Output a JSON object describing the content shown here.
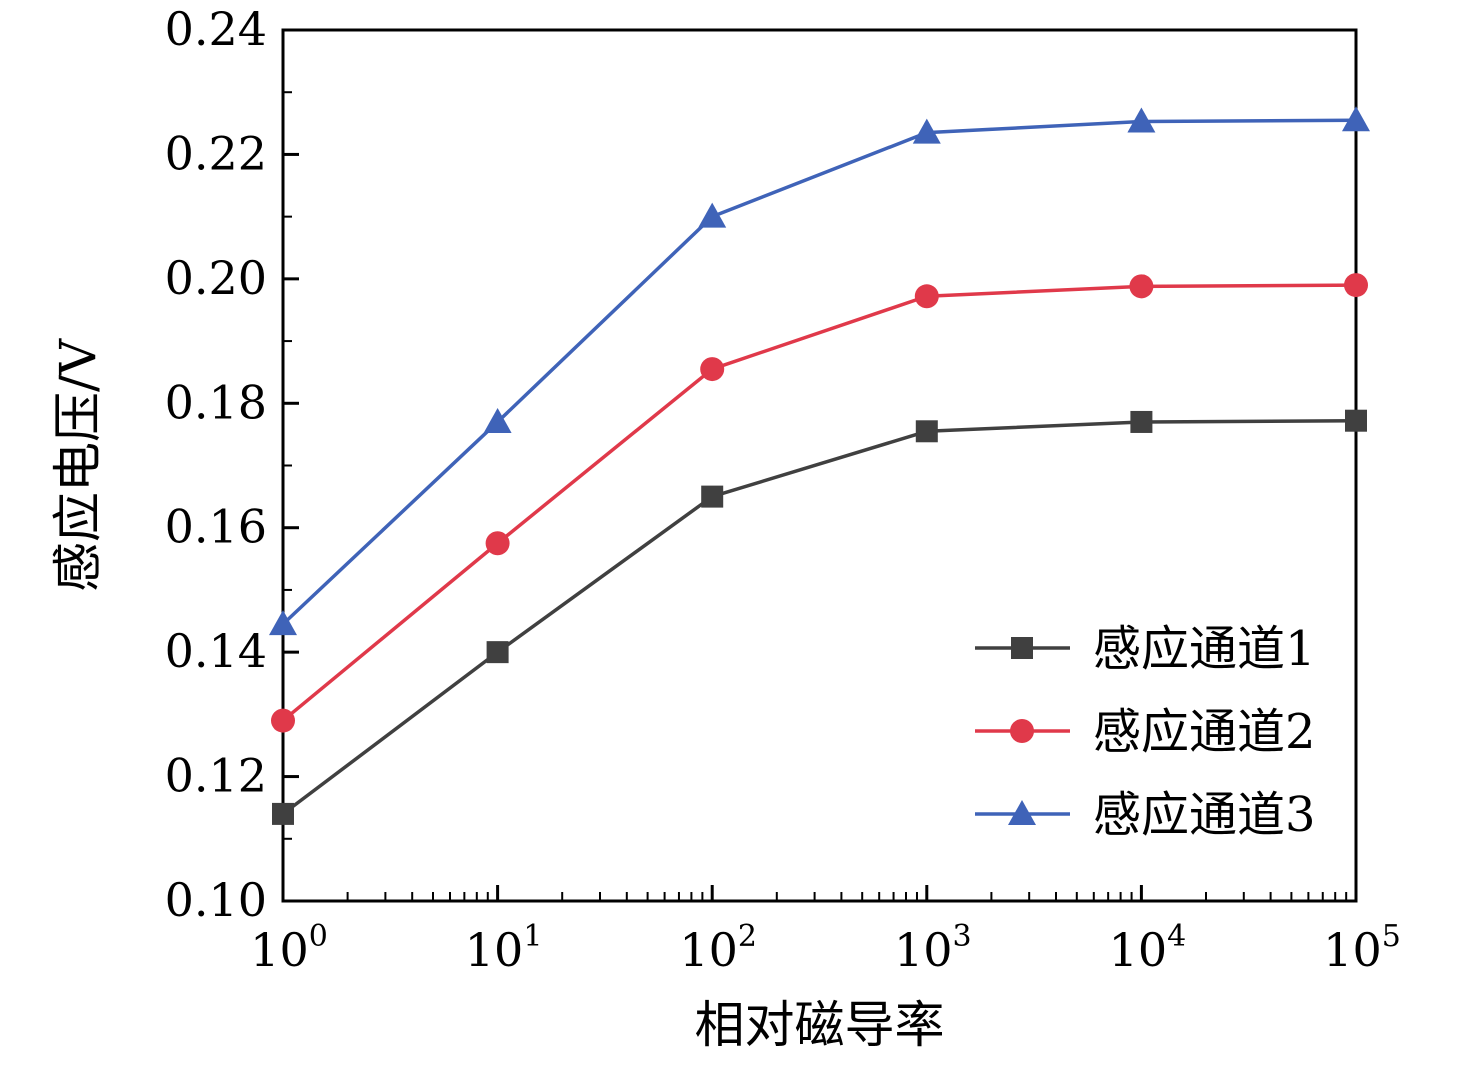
{
  "chart_data": {
    "type": "line",
    "title": "",
    "xlabel": "相对磁导率",
    "ylabel": "感应电压/V",
    "x_scale": "log10",
    "x": [
      1,
      10,
      100,
      1000,
      10000,
      100000
    ],
    "x_tick_labels_base": "10",
    "x_tick_exponents": [
      0,
      1,
      2,
      3,
      4,
      5
    ],
    "ylim": [
      0.1,
      0.24
    ],
    "y_major_step": 0.02,
    "y_minor_step": 0.01,
    "grid": false,
    "legend_position": "lower right",
    "axis_color": "#000000",
    "series": [
      {
        "name": "感应通道1",
        "marker": "square",
        "color": "#404040",
        "values": [
          0.114,
          0.14,
          0.165,
          0.1755,
          0.177,
          0.1772
        ]
      },
      {
        "name": "感应通道2",
        "marker": "circle",
        "color": "#e0394a",
        "values": [
          0.129,
          0.1575,
          0.1855,
          0.1972,
          0.1988,
          0.199
        ]
      },
      {
        "name": "感应通道3",
        "marker": "triangle",
        "color": "#3f63b8",
        "values": [
          0.1445,
          0.177,
          0.21,
          0.2235,
          0.2253,
          0.2255
        ]
      }
    ]
  }
}
